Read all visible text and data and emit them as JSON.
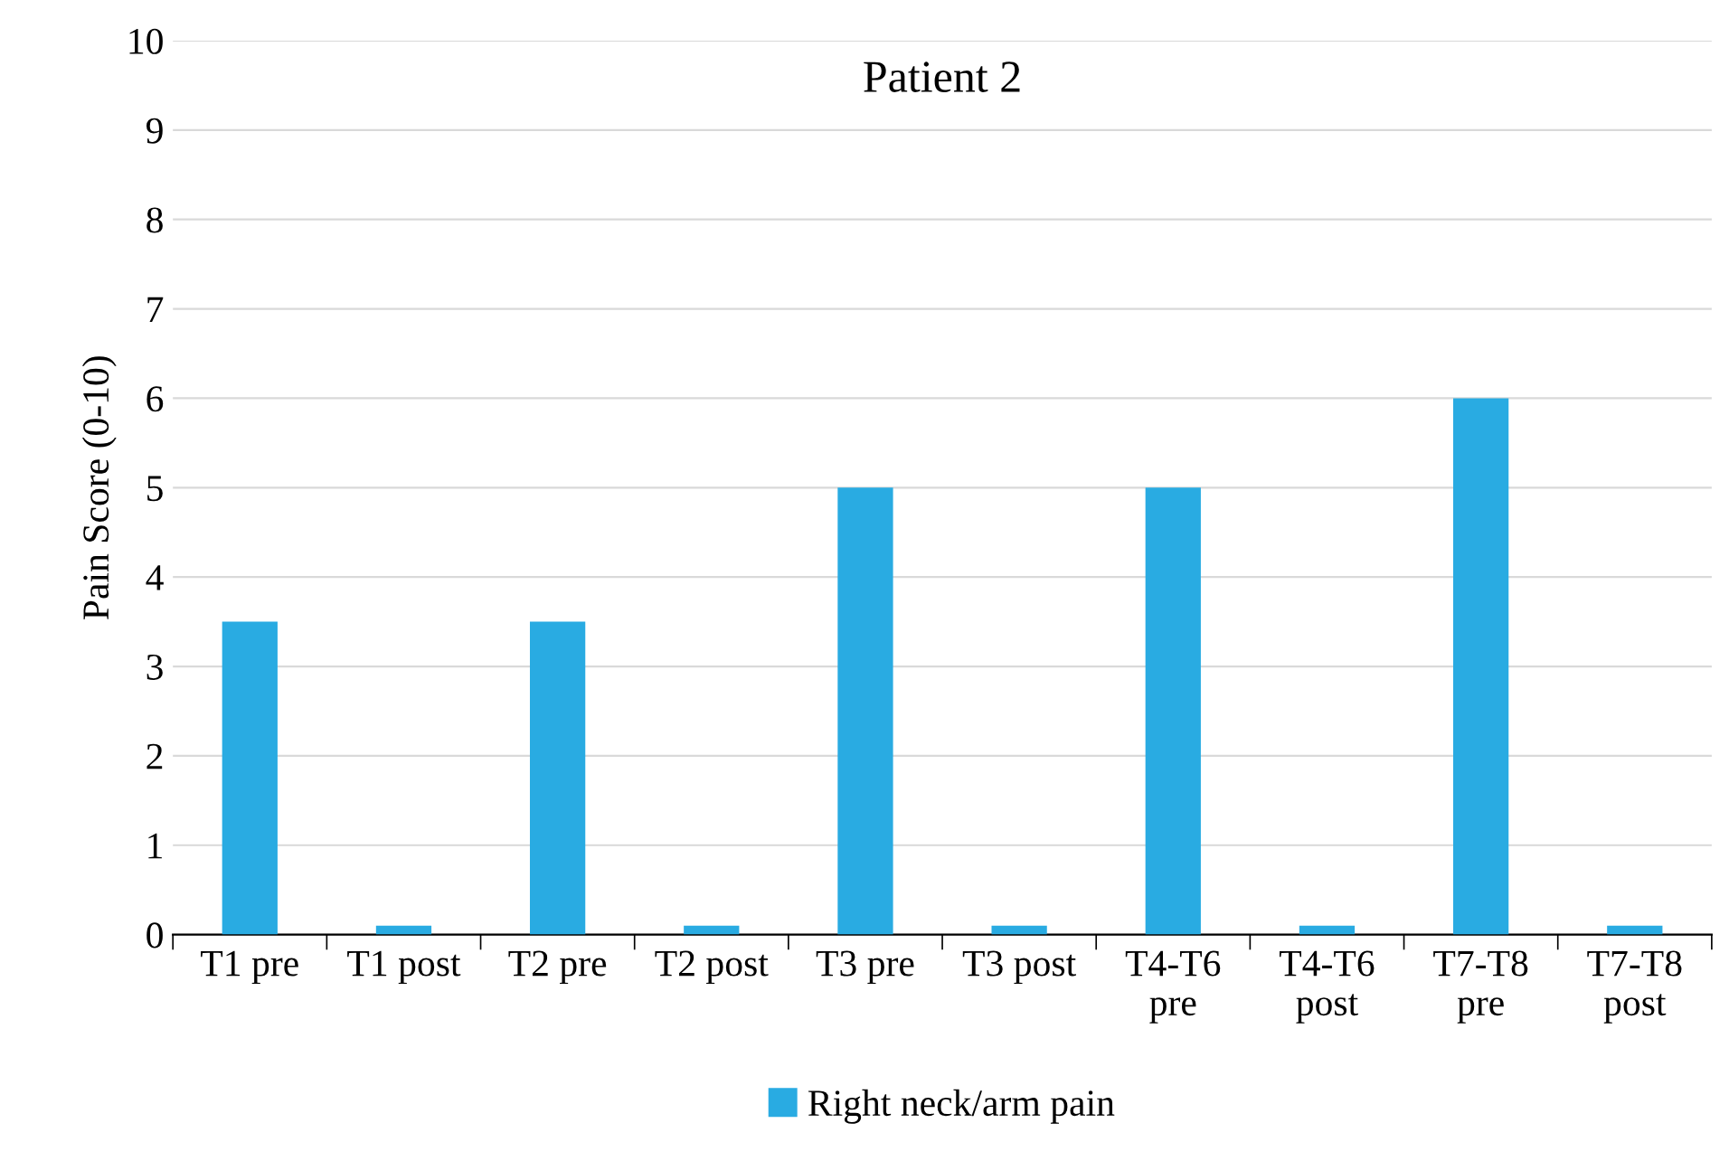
{
  "chart_data": {
    "type": "bar",
    "title": "Patient 2",
    "ylabel": "Pain Score (0-10)",
    "categories": [
      "T1 pre",
      "T1 post",
      "T2 pre",
      "T2 post",
      "T3 pre",
      "T3 post",
      "T4-T6\npre",
      "T4-T6\npost",
      "T7-T8\npre",
      "T7-T8\npost"
    ],
    "series": [
      {
        "name": "Right neck/arm pain",
        "color": "#29abe2",
        "values": [
          3.5,
          0.1,
          3.5,
          0.1,
          5,
          0.1,
          5,
          0.1,
          6,
          0.1
        ]
      }
    ],
    "ylim": [
      0,
      10
    ],
    "yticks": [
      0,
      1,
      2,
      3,
      4,
      5,
      6,
      7,
      8,
      9,
      10
    ],
    "grid": "y",
    "legend": "bottom"
  }
}
